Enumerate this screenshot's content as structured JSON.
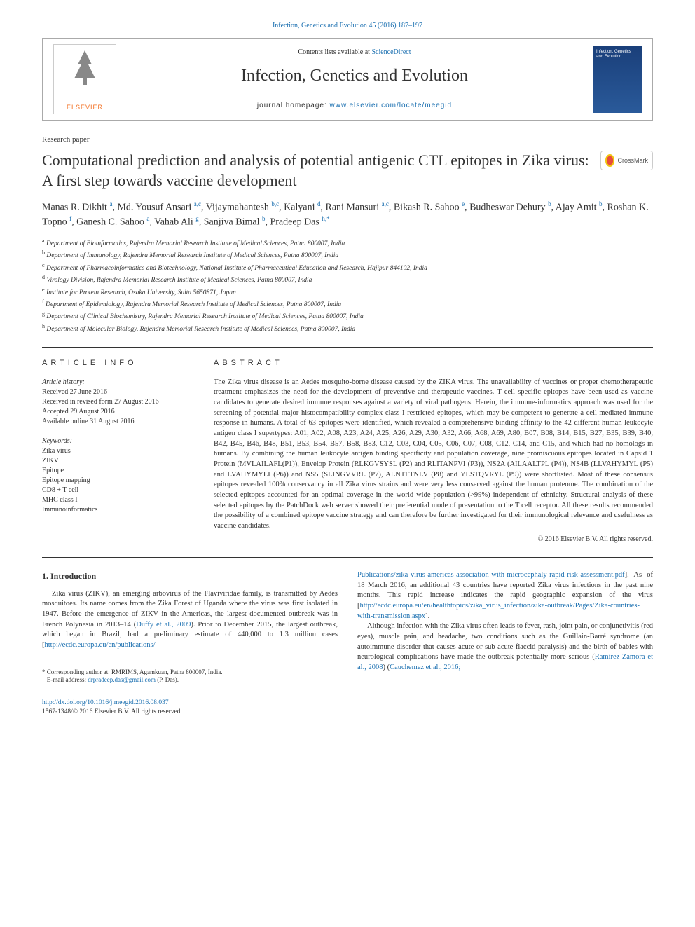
{
  "top_link": {
    "text": "Infection, Genetics and Evolution 45 (2016) 187–197",
    "url_color": "#1a6fb0"
  },
  "header": {
    "contents_line_pre": "Contents lists available at ",
    "contents_line_link": "ScienceDirect",
    "journal_title": "Infection, Genetics and Evolution",
    "homepage_pre": "journal homepage: ",
    "homepage_link": "www.elsevier.com/locate/meegid",
    "elsevier_logo_label": "ELSEVIER",
    "cover_text": "Infection, Genetics and Evolution"
  },
  "paper_type": "Research paper",
  "title": "Computational prediction and analysis of potential antigenic CTL epitopes in Zika virus: A first step towards vaccine development",
  "crossmark_label": "CrossMark",
  "authors_html": "Manas R. Dikhit <sup>a</sup>, Md. Yousuf Ansari <sup>a,c</sup>, Vijaymahantesh <sup>b,c</sup>, Kalyani <sup>d</sup>, Rani Mansuri <sup>a,c</sup>, Bikash R. Sahoo <sup>e</sup>, Budheswar Dehury <sup>b</sup>, Ajay Amit <sup>b</sup>, Roshan K. Topno <sup>f</sup>, Ganesh C. Sahoo <sup>a</sup>, Vahab Ali <sup>g</sup>, Sanjiva Bimal <sup>b</sup>, Pradeep Das <sup>h,*</sup>",
  "affiliations": [
    {
      "sup": "a",
      "text": "Department of Bioinformatics, Rajendra Memorial Research Institute of Medical Sciences, Patna 800007, India"
    },
    {
      "sup": "b",
      "text": "Department of Immunology, Rajendra Memorial Research Institute of Medical Sciences, Patna 800007, India"
    },
    {
      "sup": "c",
      "text": "Department of Pharmacoinformatics and Biotechnology, National Institute of Pharmaceutical Education and Research, Hajipur 844102, India"
    },
    {
      "sup": "d",
      "text": "Virology Division, Rajendra Memorial Research Institute of Medical Sciences, Patna 800007, India"
    },
    {
      "sup": "e",
      "text": "Institute for Protein Research, Osaka University, Suita 5650871, Japan"
    },
    {
      "sup": "f",
      "text": "Department of Epidemiology, Rajendra Memorial Research Institute of Medical Sciences, Patna 800007, India"
    },
    {
      "sup": "g",
      "text": "Department of Clinical Biochemistry, Rajendra Memorial Research Institute of Medical Sciences, Patna 800007, India"
    },
    {
      "sup": "h",
      "text": "Department of Molecular Biology, Rajendra Memorial Research Institute of Medical Sciences, Patna 800007, India"
    }
  ],
  "info": {
    "heading": "ARTICLE INFO",
    "history_label": "Article history:",
    "history": [
      "Received 27 June 2016",
      "Received in revised form 27 August 2016",
      "Accepted 29 August 2016",
      "Available online 31 August 2016"
    ],
    "keywords_label": "Keywords:",
    "keywords": [
      "Zika virus",
      "ZIKV",
      "Epitope",
      "Epitope mapping",
      "CD8 + T cell",
      "MHC class I",
      "Immunoinformatics"
    ]
  },
  "abstract": {
    "heading": "ABSTRACT",
    "text": "The Zika virus disease is an Aedes mosquito-borne disease caused by the ZIKA virus. The unavailability of vaccines or proper chemotherapeutic treatment emphasizes the need for the development of preventive and therapeutic vaccines. T cell specific epitopes have been used as vaccine candidates to generate desired immune responses against a variety of viral pathogens. Herein, the immune-informatics approach was used for the screening of potential major histocompatibility complex class I restricted epitopes, which may be competent to generate a cell-mediated immune response in humans. A total of 63 epitopes were identified, which revealed a comprehensive binding affinity to the 42 different human leukocyte antigen class I supertypes: A01, A02, A08, A23, A24, A25, A26, A29, A30, A32, A66, A68, A69, A80, B07, B08, B14, B15, B27, B35, B39, B40, B42, B45, B46, B48, B51, B53, B54, B57, B58, B83, C12, C03, C04, C05, C06, C07, C08, C12, C14, and C15, and which had no homologs in humans. By combining the human leukocyte antigen binding specificity and population coverage, nine promiscuous epitopes located in Capsid 1 Protein (MVLAILAFL(P1)), Envelop Protein (RLKGVSYSL (P2) and RLITANPVI (P3)), NS2A (AILAALTPL (P4)), NS4B (LLVAHYMYL (P5) and LVAHYMYLI (P6)) and NS5 (SLINGVVRL (P7), ALNTFTNLV (P8) and YLSTQVRYL (P9)) were shortlisted. Most of these consensus epitopes revealed 100% conservancy in all Zika virus strains and were very less conserved against the human proteome. The combination of the selected epitopes accounted for an optimal coverage in the world wide population (>99%) independent of ethnicity. Structural analysis of these selected epitopes by the PatchDock web server showed their preferential mode of presentation to the T cell receptor. All these results recommended the possibility of a combined epitope vaccine strategy and can therefore be further investigated for their immunological relevance and usefulness as vaccine candidates.",
    "copyright": "© 2016 Elsevier B.V. All rights reserved."
  },
  "body": {
    "intro_heading": "1. Introduction",
    "col1_para": "Zika virus (ZIKV), an emerging arbovirus of the Flaviviridae family, is transmitted by Aedes mosquitoes. Its name comes from the Zika Forest of Uganda where the virus was first isolated in 1947. Before the emergence of ZIKV in the Americas, the largest documented outbreak was in French Polynesia in 2013–14 (",
    "col1_ref1": "Duffy et al., 2009",
    "col1_para_mid": "). Prior to December 2015, the largest outbreak, which began in Brazil, had a preliminary estimate of 440,000 to 1.3 million cases [",
    "col1_link1": "http://ecdc.europa.eu/en/publications/",
    "col2_link1": "Publications/zika-virus-americas-association-with-microcephaly-rapid-risk-assessment.pdf",
    "col2_para1_mid": "]. As of 18 March 2016, an additional 43 countries have reported Zika virus infections in the past nine months. This rapid increase indicates the rapid geographic expansion of the virus [",
    "col2_link2": "http://ecdc.europa.eu/en/healthtopics/zika_virus_infection/zika-outbreak/Pages/Zika-countries-with-transmission.aspx",
    "col2_para1_end": "].",
    "col2_para2_pre": "Although infection with the Zika virus often leads to fever, rash, joint pain, or conjunctivitis (red eyes), muscle pain, and headache, two conditions such as the Guillain-Barré syndrome (an autoimmune disorder that causes acute or sub-acute flaccid paralysis) and the birth of babies with neurological complications have made the outbreak potentially more serious (",
    "col2_ref1": "Ramírez-Zamora et al., 2008",
    "col2_para2_mid": ") (",
    "col2_ref2": "Cauchemez et al., 2016;"
  },
  "footnote": {
    "star": "*",
    "corr": "Corresponding author at: RMRIMS, Agamkuan, Patna 800007, India.",
    "email_label": "E-mail address: ",
    "email": "drpradeep.das@gmail.com",
    "email_suffix": " (P. Das)."
  },
  "footer": {
    "doi": "http://dx.doi.org/10.1016/j.meegid.2016.08.037",
    "issn_line": "1567-1348/© 2016 Elsevier B.V. All rights reserved."
  },
  "colors": {
    "link": "#1a6fb0",
    "text": "#333333",
    "rule": "#333333",
    "light_border": "#aaaaaa"
  }
}
